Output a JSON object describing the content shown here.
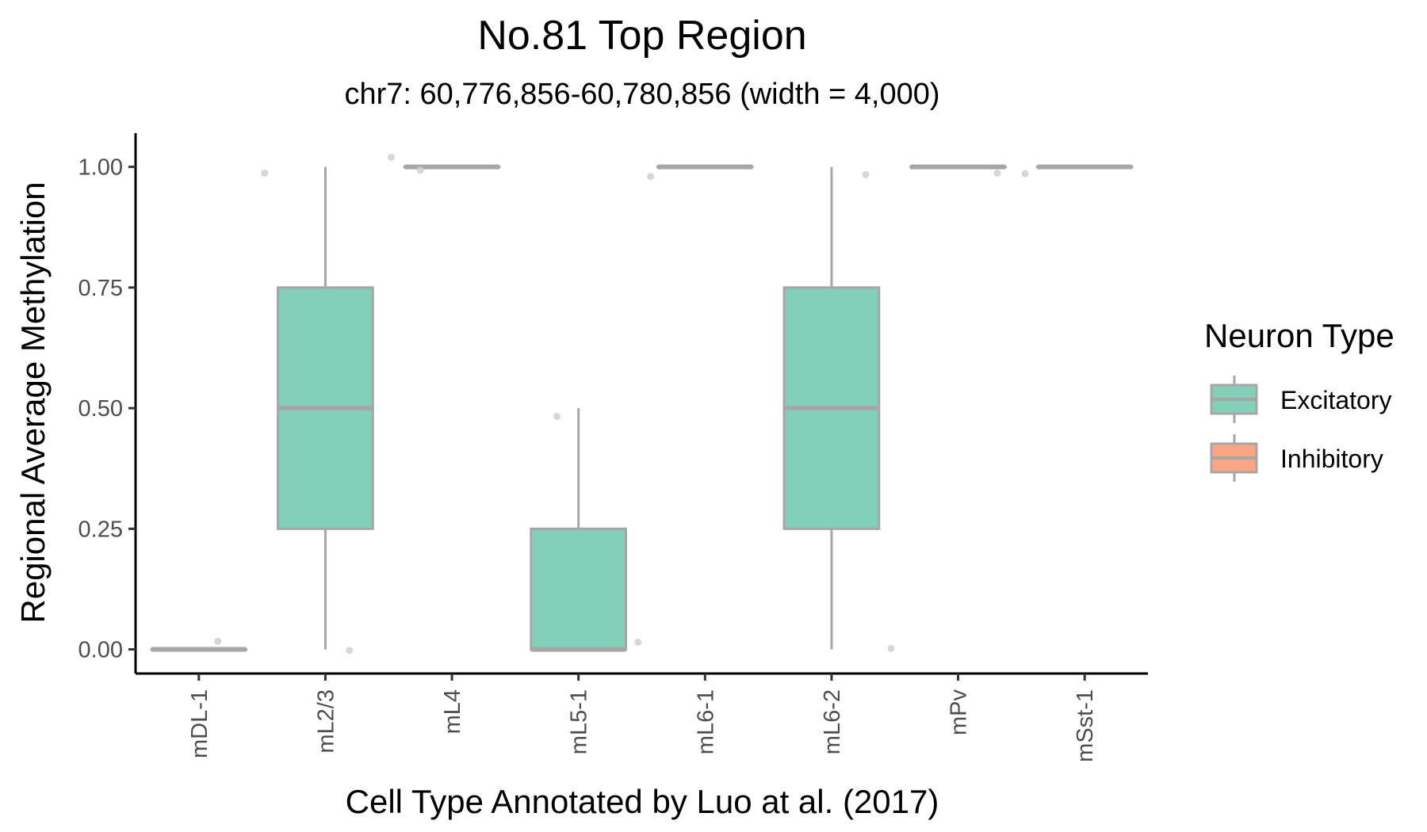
{
  "chart_data": {
    "type": "box",
    "title": "No.81 Top Region",
    "subtitle": "chr7: 60,776,856-60,780,856 (width = 4,000)",
    "xlabel": "Cell Type Annotated by Luo at al. (2017)",
    "ylabel": "Regional Average Methylation",
    "ylim": [
      -0.05,
      1.07
    ],
    "yticks": [
      0,
      0.25,
      0.5,
      0.75,
      1
    ],
    "ytick_labels": [
      "0.00",
      "0.25",
      "0.50",
      "0.75",
      "1.00"
    ],
    "categories": [
      "mDL-1",
      "mL2/3",
      "mL4",
      "mL5-1",
      "mL6-1",
      "mL6-2",
      "mPv",
      "mSst-1"
    ],
    "boxes": [
      {
        "category": "mDL-1",
        "group": "Excitatory",
        "min": 0,
        "q1": 0,
        "median": 0,
        "q3": 0,
        "max": 0
      },
      {
        "category": "mL2/3",
        "group": "Excitatory",
        "min": 0,
        "q1": 0.25,
        "median": 0.5,
        "q3": 0.75,
        "max": 1
      },
      {
        "category": "mL4",
        "group": "Excitatory",
        "min": 1,
        "q1": 1,
        "median": 1,
        "q3": 1,
        "max": 1
      },
      {
        "category": "mL5-1",
        "group": "Excitatory",
        "min": 0,
        "q1": 0,
        "median": 0,
        "q3": 0.25,
        "max": 0.5
      },
      {
        "category": "mL6-1",
        "group": "Excitatory",
        "min": 1,
        "q1": 1,
        "median": 1,
        "q3": 1,
        "max": 1
      },
      {
        "category": "mL6-2",
        "group": "Excitatory",
        "min": 0,
        "q1": 0.25,
        "median": 0.5,
        "q3": 0.75,
        "max": 1
      },
      {
        "category": "mPv",
        "group": "Excitatory",
        "min": 1,
        "q1": 1,
        "median": 1,
        "q3": 1,
        "max": 1
      },
      {
        "category": "mSst-1",
        "group": "Excitatory",
        "min": 1,
        "q1": 1,
        "median": 1,
        "q3": 1,
        "max": 1
      }
    ],
    "jitter_points": [
      {
        "category": "mDL-1",
        "offset": 0.15,
        "y": 0.017
      },
      {
        "category": "mL2/3",
        "offset": -0.48,
        "y": 0.987
      },
      {
        "category": "mL2/3",
        "offset": 0.19,
        "y": -0.002
      },
      {
        "category": "mL4",
        "offset": -0.48,
        "y": 1.02
      },
      {
        "category": "mL4",
        "offset": -0.25,
        "y": 0.993
      },
      {
        "category": "mL5-1",
        "offset": -0.17,
        "y": 0.483
      },
      {
        "category": "mL5-1",
        "offset": 0.47,
        "y": 0.015
      },
      {
        "category": "mL6-1",
        "offset": -0.43,
        "y": 0.98
      },
      {
        "category": "mL6-2",
        "offset": 0.27,
        "y": 0.984
      },
      {
        "category": "mL6-2",
        "offset": 0.47,
        "y": 0.002
      },
      {
        "category": "mPv",
        "offset": 0.31,
        "y": 0.987
      },
      {
        "category": "mSst-1",
        "offset": -0.47,
        "y": 0.986
      }
    ],
    "legend": {
      "title": "Neuron Type",
      "placement": "right",
      "entries": [
        {
          "label": "Excitatory",
          "color": "#84CFB7"
        },
        {
          "label": "Inhibitory",
          "color": "#FCA584"
        }
      ]
    },
    "grid": false,
    "colors": {
      "box_outline": "#A6A6A6",
      "point": "#D3D3D3",
      "axis": "#000000"
    }
  }
}
